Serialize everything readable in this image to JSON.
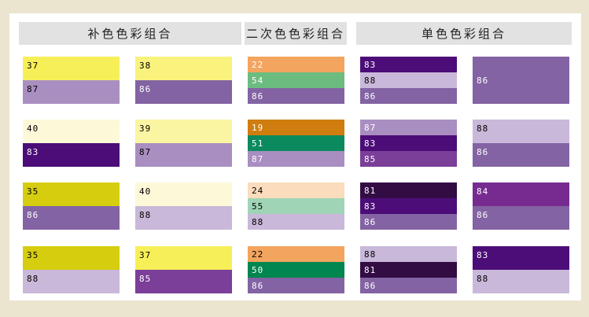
{
  "theme": {
    "page_bg": "#ebe4cf",
    "panel_bg": "#ffffff",
    "header_bg": "#e2e2e2",
    "header_text": "#1f1f1f",
    "label_dark": "#000000",
    "label_light": "#ffffff"
  },
  "palette": {
    "19": "#cf7d0e",
    "22": "#f3a45f",
    "24": "#fbdcbd",
    "35": "#d5cd0e",
    "37": "#f7ef58",
    "38": "#f9f27c",
    "39": "#faf5a2",
    "40": "#fdf8d8",
    "50": "#00864f",
    "51": "#0b8a5e",
    "54": "#6cbc80",
    "55": "#a0d4b6",
    "81": "#330c44",
    "83": "#4c0d78",
    "84": "#772b90",
    "85": "#7b3e99",
    "86": "#8363a3",
    "87": "#a98ec1",
    "88": "#c9b8d9"
  },
  "groups": [
    {
      "id": "complementary",
      "title": "补色色彩组合",
      "columns": [
        [
          {
            "stripes": [
              {
                "num": "37",
                "label": "dark"
              },
              {
                "num": "87",
                "label": "dark"
              }
            ]
          },
          {
            "stripes": [
              {
                "num": "40",
                "label": "dark"
              },
              {
                "num": "83",
                "label": "light"
              }
            ]
          },
          {
            "stripes": [
              {
                "num": "35",
                "label": "dark"
              },
              {
                "num": "86",
                "label": "light"
              }
            ]
          },
          {
            "stripes": [
              {
                "num": "35",
                "label": "dark"
              },
              {
                "num": "88",
                "label": "dark"
              }
            ]
          }
        ],
        [
          {
            "stripes": [
              {
                "num": "38",
                "label": "dark"
              },
              {
                "num": "86",
                "label": "light"
              }
            ]
          },
          {
            "stripes": [
              {
                "num": "39",
                "label": "dark"
              },
              {
                "num": "87",
                "label": "dark"
              }
            ]
          },
          {
            "stripes": [
              {
                "num": "40",
                "label": "dark"
              },
              {
                "num": "88",
                "label": "dark"
              }
            ]
          },
          {
            "stripes": [
              {
                "num": "37",
                "label": "dark"
              },
              {
                "num": "85",
                "label": "light"
              }
            ]
          }
        ]
      ]
    },
    {
      "id": "secondary",
      "title": "二次色色彩组合",
      "columns": [
        [
          {
            "stripes": [
              {
                "num": "22",
                "label": "light"
              },
              {
                "num": "54",
                "label": "light"
              },
              {
                "num": "86",
                "label": "light"
              }
            ]
          },
          {
            "stripes": [
              {
                "num": "19",
                "label": "light"
              },
              {
                "num": "51",
                "label": "light"
              },
              {
                "num": "87",
                "label": "light"
              }
            ]
          },
          {
            "stripes": [
              {
                "num": "24",
                "label": "dark"
              },
              {
                "num": "55",
                "label": "dark"
              },
              {
                "num": "88",
                "label": "dark"
              }
            ]
          },
          {
            "stripes": [
              {
                "num": "22",
                "label": "dark"
              },
              {
                "num": "50",
                "label": "light"
              },
              {
                "num": "86",
                "label": "light"
              }
            ]
          }
        ]
      ]
    },
    {
      "id": "monochrome",
      "title": "单色色彩组合",
      "columns": [
        [
          {
            "stripes": [
              {
                "num": "83",
                "label": "light"
              },
              {
                "num": "88",
                "label": "dark"
              },
              {
                "num": "86",
                "label": "light"
              }
            ]
          },
          {
            "stripes": [
              {
                "num": "87",
                "label": "light"
              },
              {
                "num": "83",
                "label": "light"
              },
              {
                "num": "85",
                "label": "light"
              }
            ]
          },
          {
            "stripes": [
              {
                "num": "81",
                "label": "light"
              },
              {
                "num": "83",
                "label": "light"
              },
              {
                "num": "86",
                "label": "light"
              }
            ]
          },
          {
            "stripes": [
              {
                "num": "88",
                "label": "dark"
              },
              {
                "num": "81",
                "label": "light"
              },
              {
                "num": "86",
                "label": "light"
              }
            ]
          }
        ],
        [
          {
            "stripes": [
              {
                "num": "86",
                "label": "light"
              }
            ]
          },
          {
            "stripes": [
              {
                "num": "88",
                "label": "dark"
              },
              {
                "num": "86",
                "label": "light"
              }
            ]
          },
          {
            "stripes": [
              {
                "num": "84",
                "label": "light"
              },
              {
                "num": "86",
                "label": "light"
              }
            ]
          },
          {
            "stripes": [
              {
                "num": "83",
                "label": "light"
              },
              {
                "num": "88",
                "label": "dark"
              }
            ]
          }
        ]
      ]
    }
  ]
}
